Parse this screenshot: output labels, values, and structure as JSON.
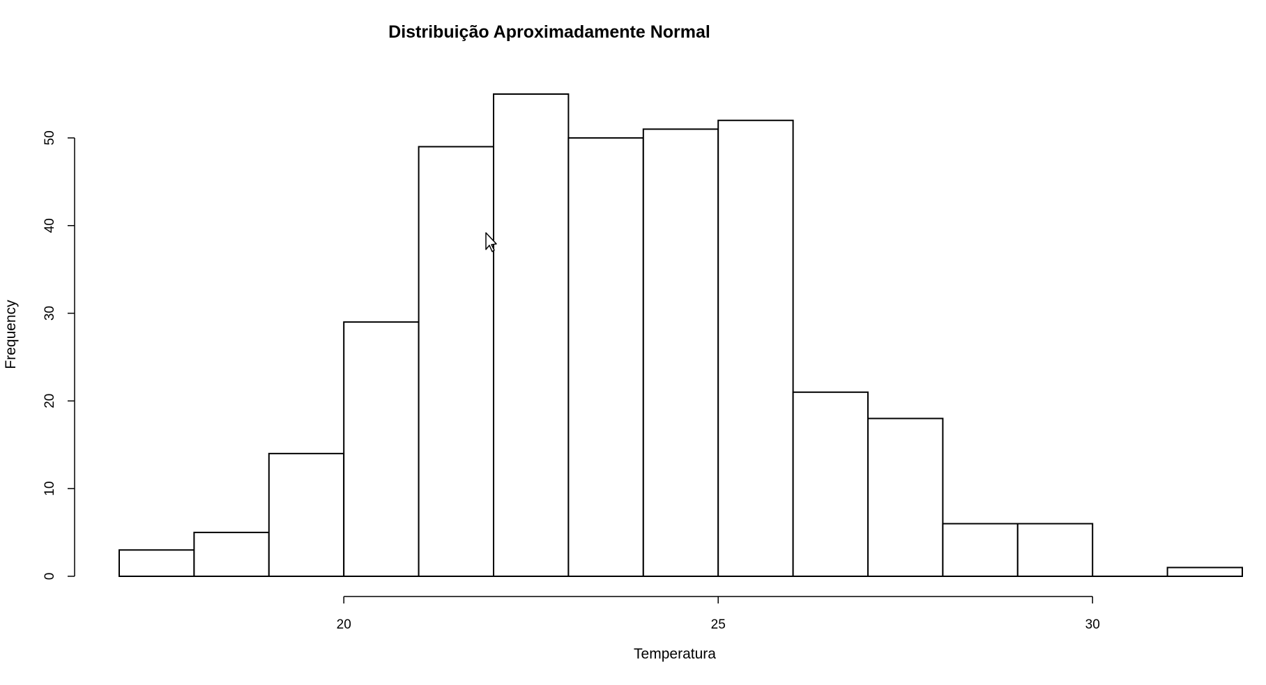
{
  "chart_data": {
    "type": "bar",
    "title": "Distribuição Aproximadamente Normal",
    "xlabel": "Temperatura",
    "ylabel": "Frequency",
    "bin_edges": [
      17,
      18,
      19,
      20,
      21,
      22,
      23,
      24,
      25,
      26,
      27,
      28,
      29,
      30,
      31,
      32
    ],
    "values": [
      3,
      5,
      14,
      29,
      49,
      55,
      50,
      51,
      52,
      21,
      18,
      6,
      6,
      0,
      1
    ],
    "xlim": [
      17,
      32
    ],
    "ylim": [
      0,
      55
    ],
    "x_ticks": [
      20,
      25,
      30
    ],
    "x_tick_labels": [
      "20",
      "25",
      "30"
    ],
    "y_ticks": [
      0,
      10,
      20,
      30,
      40,
      50
    ],
    "y_tick_labels": [
      "0",
      "10",
      "20",
      "30",
      "40",
      "50"
    ],
    "grid": false,
    "legend": "none",
    "bar_fill": "#ffffff",
    "bar_stroke": "#000000"
  },
  "cursor_icon": "mouse-pointer-icon"
}
